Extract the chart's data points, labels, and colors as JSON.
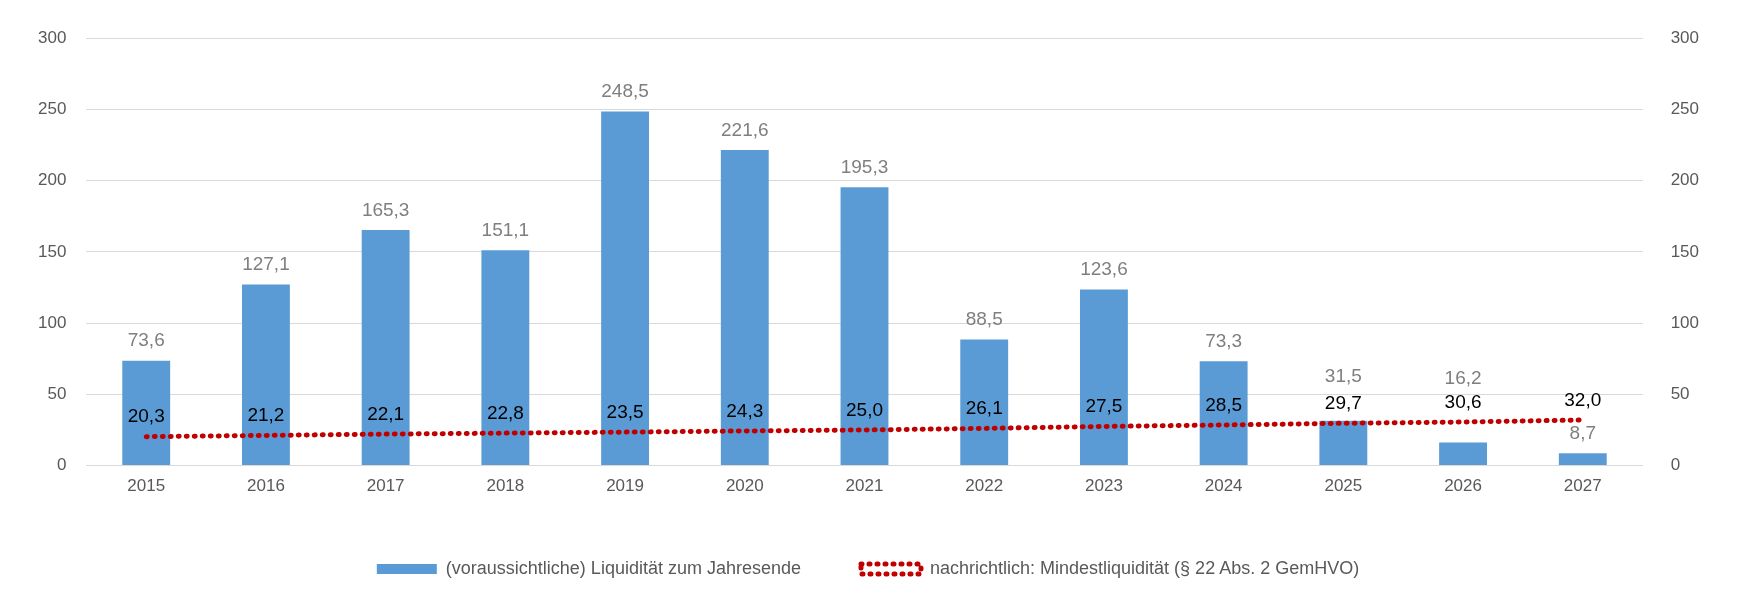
{
  "chart_data": {
    "type": "bar",
    "categories": [
      "2015",
      "2016",
      "2017",
      "2018",
      "2019",
      "2020",
      "2021",
      "2022",
      "2023",
      "2024",
      "2025",
      "2026",
      "2027"
    ],
    "series": [
      {
        "name": "(voraussichtliche) Liquidität zum Jahresende",
        "color": "#5b9bd5",
        "values": [
          73.6,
          127.1,
          165.3,
          151.1,
          248.5,
          221.6,
          195.3,
          88.5,
          123.6,
          73.3,
          31.5,
          16.2,
          8.7
        ],
        "value_labels": [
          "73,6",
          "127,1",
          "165,3",
          "151,1",
          "248,5",
          "221,6",
          "195,3",
          "88,5",
          "123,6",
          "73,3",
          "31,5",
          "16,2",
          "8,7"
        ]
      },
      {
        "name": "nachrichtlich: Mindestliquidität (§ 22 Abs. 2 GemHVO)",
        "type": "line",
        "color": "#c00000",
        "line_style": "dotted",
        "marker": "none",
        "values": [
          20.3,
          21.2,
          22.1,
          22.8,
          23.5,
          24.3,
          25.0,
          26.1,
          27.5,
          28.5,
          29.7,
          30.6,
          32.0
        ],
        "value_labels": [
          "20,3",
          "21,2",
          "22,1",
          "22,8",
          "23,5",
          "24,3",
          "25,0",
          "26,1",
          "27,5",
          "28,5",
          "29,7",
          "30,6",
          "32,0"
        ]
      }
    ],
    "ylim": [
      0,
      300
    ],
    "yticks": [
      0,
      50,
      100,
      150,
      200,
      250,
      300
    ],
    "y2lim": [
      0,
      300
    ],
    "y2ticks": [
      0,
      50,
      100,
      150,
      200,
      250,
      300
    ],
    "grid": "y",
    "legend": "bottom"
  }
}
